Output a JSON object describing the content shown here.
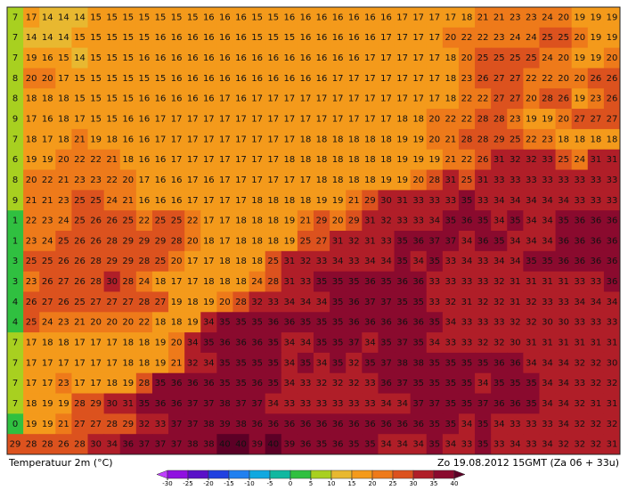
{
  "map": {
    "caption": "Temperatuur 2m (°C)",
    "timestamp": "Zo 19.08.2012 15GMT (Za 06 + 33u)",
    "rows": [
      [
        7,
        17,
        14,
        14,
        14,
        15,
        15,
        15,
        15,
        15,
        15,
        15,
        16,
        16,
        16,
        15,
        15,
        16,
        16,
        16,
        16,
        16,
        16,
        16,
        17,
        17,
        17,
        17,
        18,
        21,
        21,
        23,
        23,
        24,
        20,
        19,
        19,
        19
      ],
      [
        7,
        14,
        14,
        14,
        15,
        15,
        15,
        15,
        15,
        16,
        16,
        16,
        16,
        16,
        16,
        15,
        15,
        15,
        16,
        16,
        16,
        16,
        16,
        17,
        17,
        17,
        17,
        20,
        22,
        22,
        23,
        24,
        24,
        25,
        25,
        20,
        19,
        19
      ],
      [
        7,
        19,
        16,
        15,
        14,
        15,
        15,
        15,
        16,
        16,
        16,
        16,
        16,
        16,
        16,
        16,
        16,
        16,
        16,
        16,
        16,
        16,
        17,
        17,
        17,
        17,
        17,
        18,
        20,
        25,
        25,
        25,
        25,
        24,
        20,
        19,
        19,
        20
      ],
      [
        8,
        20,
        20,
        17,
        15,
        15,
        15,
        15,
        15,
        15,
        16,
        16,
        16,
        16,
        16,
        16,
        16,
        16,
        16,
        16,
        17,
        17,
        17,
        17,
        17,
        17,
        17,
        18,
        23,
        26,
        27,
        27,
        22,
        22,
        20,
        20,
        26,
        26
      ],
      [
        8,
        18,
        18,
        18,
        15,
        15,
        15,
        15,
        16,
        16,
        16,
        16,
        16,
        17,
        16,
        17,
        17,
        17,
        17,
        17,
        17,
        17,
        17,
        17,
        17,
        17,
        17,
        18,
        22,
        22,
        27,
        27,
        20,
        28,
        26,
        19,
        23,
        26
      ],
      [
        9,
        17,
        16,
        18,
        17,
        15,
        15,
        16,
        16,
        17,
        17,
        17,
        17,
        17,
        17,
        17,
        17,
        17,
        17,
        17,
        17,
        17,
        17,
        17,
        18,
        18,
        20,
        22,
        22,
        28,
        28,
        23,
        19,
        19,
        20,
        27,
        27,
        27
      ],
      [
        7,
        18,
        17,
        18,
        21,
        19,
        18,
        16,
        16,
        17,
        17,
        17,
        17,
        17,
        17,
        17,
        17,
        17,
        18,
        18,
        18,
        18,
        18,
        18,
        19,
        19,
        20,
        21,
        28,
        28,
        29,
        25,
        22,
        23,
        18,
        18,
        18,
        18
      ],
      [
        6,
        19,
        19,
        20,
        22,
        22,
        21,
        18,
        16,
        16,
        17,
        17,
        17,
        17,
        17,
        17,
        17,
        18,
        18,
        18,
        18,
        18,
        18,
        18,
        19,
        19,
        19,
        21,
        22,
        26,
        31,
        32,
        32,
        33,
        25,
        24,
        31,
        31
      ],
      [
        8,
        20,
        22,
        21,
        23,
        23,
        22,
        20,
        17,
        16,
        16,
        17,
        16,
        17,
        17,
        17,
        17,
        17,
        17,
        18,
        18,
        18,
        18,
        19,
        19,
        20,
        28,
        31,
        25,
        31,
        33,
        33,
        33,
        33,
        33,
        33,
        33,
        33
      ],
      [
        9,
        21,
        21,
        23,
        25,
        25,
        24,
        21,
        16,
        16,
        16,
        17,
        17,
        17,
        17,
        18,
        18,
        18,
        18,
        19,
        19,
        21,
        29,
        30,
        31,
        33,
        33,
        33,
        35,
        33,
        34,
        34,
        34,
        34,
        34,
        33,
        33,
        33
      ],
      [
        1,
        22,
        23,
        24,
        25,
        26,
        26,
        25,
        22,
        25,
        25,
        22,
        17,
        17,
        18,
        18,
        18,
        19,
        21,
        29,
        20,
        29,
        31,
        32,
        33,
        33,
        34,
        35,
        36,
        35,
        34,
        35,
        34,
        34,
        35,
        36,
        36,
        36
      ],
      [
        1,
        23,
        24,
        25,
        26,
        26,
        28,
        29,
        29,
        29,
        28,
        20,
        18,
        17,
        18,
        18,
        18,
        19,
        25,
        27,
        31,
        32,
        31,
        33,
        35,
        36,
        37,
        37,
        34,
        36,
        35,
        34,
        34,
        34,
        36,
        36,
        36,
        36
      ],
      [
        3,
        25,
        25,
        26,
        26,
        28,
        29,
        29,
        28,
        25,
        20,
        17,
        17,
        18,
        18,
        18,
        25,
        31,
        32,
        33,
        34,
        33,
        34,
        34,
        35,
        34,
        35,
        33,
        34,
        33,
        34,
        34,
        35,
        35,
        36,
        36,
        36,
        36
      ],
      [
        3,
        23,
        26,
        27,
        26,
        28,
        30,
        28,
        24,
        18,
        17,
        17,
        18,
        18,
        18,
        24,
        28,
        31,
        33,
        35,
        35,
        35,
        36,
        35,
        36,
        36,
        33,
        33,
        33,
        33,
        32,
        31,
        31,
        31,
        31,
        33,
        33,
        36
      ],
      [
        4,
        26,
        27,
        26,
        25,
        27,
        27,
        27,
        28,
        27,
        19,
        18,
        19,
        20,
        28,
        32,
        33,
        34,
        34,
        34,
        35,
        36,
        37,
        37,
        35,
        35,
        33,
        32,
        31,
        32,
        32,
        31,
        32,
        33,
        33,
        34,
        34,
        34
      ],
      [
        4,
        25,
        24,
        23,
        21,
        20,
        20,
        20,
        22,
        18,
        18,
        19,
        34,
        35,
        35,
        35,
        36,
        36,
        35,
        35,
        35,
        36,
        36,
        36,
        36,
        36,
        35,
        34,
        33,
        33,
        33,
        32,
        32,
        30,
        30,
        33,
        33,
        33
      ],
      [
        7,
        17,
        18,
        18,
        17,
        17,
        17,
        18,
        18,
        19,
        20,
        34,
        35,
        36,
        36,
        36,
        35,
        34,
        34,
        35,
        35,
        37,
        34,
        35,
        37,
        35,
        34,
        33,
        33,
        32,
        32,
        30,
        31,
        31,
        31,
        31,
        31,
        31
      ],
      [
        7,
        17,
        17,
        17,
        17,
        17,
        17,
        18,
        18,
        19,
        21,
        32,
        34,
        35,
        35,
        35,
        35,
        34,
        35,
        34,
        35,
        32,
        35,
        37,
        38,
        38,
        35,
        35,
        35,
        35,
        36,
        36,
        34,
        34,
        34,
        32,
        32,
        30
      ],
      [
        7,
        17,
        17,
        23,
        17,
        17,
        18,
        19,
        28,
        35,
        36,
        36,
        36,
        35,
        35,
        36,
        35,
        34,
        33,
        32,
        32,
        32,
        33,
        36,
        37,
        35,
        35,
        35,
        35,
        34,
        35,
        35,
        35,
        34,
        34,
        33,
        32,
        32
      ],
      [
        7,
        18,
        19,
        19,
        28,
        29,
        30,
        31,
        35,
        36,
        36,
        37,
        37,
        38,
        37,
        37,
        34,
        33,
        33,
        33,
        33,
        33,
        33,
        34,
        34,
        37,
        37,
        35,
        35,
        37,
        36,
        36,
        35,
        34,
        34,
        32,
        31,
        31
      ],
      [
        0,
        19,
        19,
        21,
        27,
        27,
        28,
        29,
        32,
        33,
        37,
        37,
        38,
        39,
        38,
        36,
        36,
        36,
        36,
        36,
        36,
        36,
        36,
        36,
        36,
        36,
        35,
        35,
        34,
        35,
        34,
        33,
        33,
        33,
        34,
        32,
        32,
        32
      ],
      [
        29,
        28,
        28,
        26,
        28,
        30,
        34,
        36,
        37,
        37,
        37,
        38,
        38,
        40,
        40,
        39,
        40,
        39,
        36,
        35,
        36,
        35,
        35,
        34,
        34,
        34,
        35,
        34,
        33,
        35,
        33,
        34,
        33,
        34,
        32,
        32,
        32,
        31
      ]
    ]
  },
  "colorbar": {
    "ticks": [
      -30,
      -25,
      -20,
      -15,
      -10,
      -5,
      0,
      5,
      10,
      15,
      20,
      25,
      30,
      35,
      40
    ],
    "colors": [
      "#c040ff",
      "#9010e0",
      "#5a10c8",
      "#2040e0",
      "#2080f0",
      "#10a8e0",
      "#10b8a0",
      "#30c040",
      "#a8d020",
      "#e8b830",
      "#f49a1b",
      "#ee7a1a",
      "#dc521e",
      "#b01e28",
      "#8a0a2e",
      "#5c0026"
    ]
  }
}
